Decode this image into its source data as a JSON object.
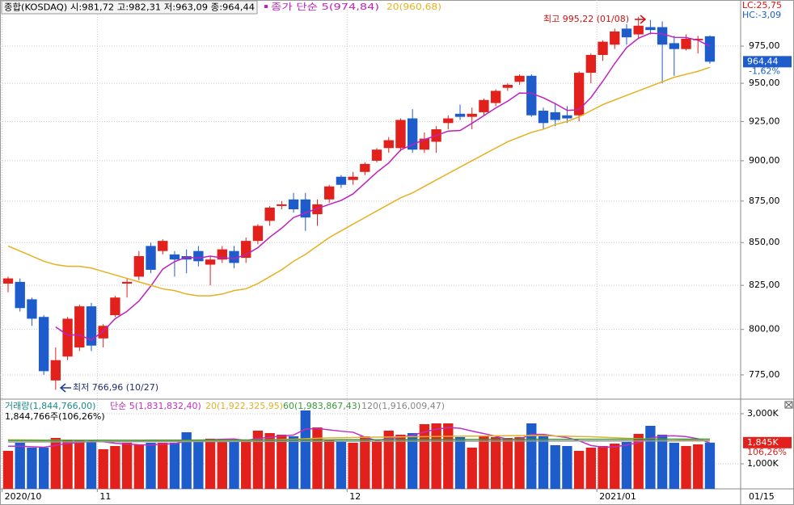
{
  "chart_data": [
    {
      "type": "candlestick",
      "title": "종합(KOSDAQ) 시:981,72 고:982,31 저:963,09 종:964,44",
      "log": true,
      "ylim": [
        762.4,
        1006.9
      ],
      "yticks": [
        {
          "value": 775,
          "label": "775,00"
        },
        {
          "value": 800,
          "label": "800,00"
        },
        {
          "value": 825,
          "label": "825,00"
        },
        {
          "value": 850,
          "label": "850,00"
        },
        {
          "value": 875,
          "label": "875,00"
        },
        {
          "value": 900,
          "label": "900,00"
        },
        {
          "value": 925,
          "label": "925,00"
        },
        {
          "value": 950,
          "label": "950,00"
        },
        {
          "value": 975,
          "label": "975,00"
        }
      ],
      "xticks": [
        {
          "value": -0.5,
          "label": "2020/10"
        },
        {
          "value": 7.5,
          "label": "11"
        },
        {
          "value": 28.5,
          "label": "12"
        },
        {
          "value": 49.5,
          "label": "2021/01"
        }
      ],
      "date_label": "01/15",
      "grid": true,
      "up_color": "#e2201c",
      "down_color": "#1e5ccc",
      "open": [
        826,
        827,
        817,
        807,
        772,
        785,
        790,
        813,
        795,
        808,
        826,
        830,
        848,
        845,
        843,
        842,
        845,
        837,
        840,
        845,
        841,
        851,
        863,
        872,
        876,
        876,
        867,
        876,
        890,
        888,
        893,
        900,
        908,
        908,
        927,
        907,
        912,
        924,
        930,
        928,
        931,
        937,
        947,
        951,
        955,
        932,
        931,
        929,
        929,
        957,
        969,
        976,
        987,
        983,
        988,
        988,
        977,
        973,
        979,
        981.72
      ],
      "high": [
        830,
        829,
        818,
        808,
        790,
        807,
        814,
        815,
        803,
        819,
        829,
        845,
        850,
        852,
        845,
        846,
        848,
        842,
        848,
        848,
        853,
        861,
        872,
        875,
        880,
        880,
        876,
        885,
        891,
        893,
        899,
        908,
        915,
        927,
        933,
        918,
        922,
        929,
        936,
        934,
        940,
        946,
        950,
        956,
        956,
        934,
        937,
        935,
        958,
        970,
        979,
        987,
        990,
        995.22,
        993,
        992,
        982,
        983,
        982,
        982.31
      ],
      "low": [
        821,
        810,
        802,
        775,
        766.96,
        783,
        788,
        788,
        790,
        807,
        818,
        828,
        832,
        843,
        830,
        832,
        836,
        825,
        838,
        835,
        838,
        849,
        860,
        870,
        868,
        857,
        860,
        874,
        883,
        885,
        891,
        899,
        905,
        906,
        905,
        905,
        905,
        920,
        926,
        920,
        929,
        935,
        945,
        949,
        928,
        920,
        922,
        924,
        925,
        950,
        965,
        973,
        976,
        980,
        983,
        950,
        955,
        972,
        970,
        963.09
      ],
      "close": [
        829,
        812,
        806,
        777,
        783,
        806,
        813,
        791,
        802,
        818,
        827,
        842,
        834,
        851,
        840,
        840,
        839,
        840,
        846,
        838,
        851,
        860,
        871,
        873,
        870,
        865,
        873,
        884,
        885,
        890,
        898,
        907,
        913,
        926,
        907,
        914,
        920,
        927,
        928,
        930,
        939,
        945,
        949,
        955,
        929,
        924,
        926,
        927,
        957,
        969,
        978,
        985,
        981,
        989,
        986,
        976,
        973,
        980,
        980,
        964.44
      ],
      "series": [
        {
          "name": "종가 단순 5(974,84)",
          "color": "#c020c0",
          "values": [
            null,
            null,
            null,
            null,
            801.4,
            796.8,
            797.0,
            794.0,
            799.0,
            806.0,
            810.2,
            816.0,
            824.6,
            834.4,
            838.8,
            841.4,
            840.8,
            842.0,
            841.0,
            840.6,
            842.8,
            847.0,
            853.2,
            858.6,
            865.0,
            867.8,
            870.4,
            873.0,
            875.4,
            879.4,
            886.0,
            892.8,
            898.6,
            906.8,
            910.2,
            913.4,
            916.0,
            918.8,
            919.2,
            923.8,
            928.8,
            933.8,
            938.2,
            943.6,
            943.4,
            940.4,
            936.6,
            932.2,
            932.6,
            940.6,
            951.4,
            963.2,
            974.0,
            980.4,
            983.8,
            983.4,
            981.0,
            980.8,
            979.0,
            974.84
          ]
        },
        {
          "name": "20(960,68)",
          "color": "#e6b020",
          "values": [
            848,
            845,
            842,
            839,
            837,
            836,
            836,
            835,
            833,
            831,
            829,
            827,
            825,
            823,
            822,
            820,
            819,
            819,
            820,
            822,
            823,
            826,
            830,
            834,
            839,
            843,
            848,
            853,
            857,
            861,
            865,
            869,
            873,
            877,
            880,
            884,
            888,
            892,
            896,
            900,
            904,
            908,
            912,
            915,
            918,
            920,
            923,
            925,
            928,
            932,
            936,
            939,
            942,
            945,
            948,
            951,
            954,
            956,
            958,
            960.68
          ]
        }
      ],
      "annotations": [
        "최고 995,22 (01/08)",
        "최저 766,96 (10/27)"
      ],
      "lc": "LC:25,75",
      "hc": "HC:-3,09",
      "last": {
        "value": 964.44,
        "label": "964,44"
      },
      "change": "-1,62%"
    },
    {
      "type": "bar",
      "title": "거래량(1,844,766,00)",
      "subtitle": "1,844,766주(106,26%)",
      "ylim": [
        0,
        3548
      ],
      "yticks": [
        {
          "value": 1000,
          "label": "1,000K"
        },
        {
          "value": 3000,
          "label": "3,000K"
        }
      ],
      "values": [
        1516,
        1839,
        1645,
        1645,
        2032,
        1968,
        1935,
        1903,
        1581,
        1710,
        1839,
        1774,
        1839,
        1839,
        1839,
        2258,
        1903,
        2000,
        1903,
        1903,
        1935,
        2323,
        2226,
        2161,
        2097,
        3129,
        2452,
        1935,
        1903,
        1839,
        2097,
        1871,
        2323,
        2161,
        2226,
        2581,
        2613,
        2613,
        2065,
        1645,
        2097,
        2065,
        2032,
        2065,
        2613,
        2097,
        1742,
        1710,
        1516,
        1645,
        1710,
        1806,
        1871,
        2194,
        2516,
        2161,
        1839,
        1710,
        1774,
        1844.766
      ],
      "series": [
        {
          "name": "단순 5(1,831,832,40)",
          "color": "#c030c0",
          "values": [
            1700,
            1700,
            1680,
            1660,
            1735,
            1820,
            1845,
            1900,
            1880,
            1820,
            1790,
            1760,
            1750,
            1790,
            1800,
            1910,
            1936,
            1957,
            1980,
            1993,
            1929,
            2013,
            2058,
            2110,
            2148,
            2387,
            2412,
            2354,
            2300,
            2260,
            2065,
            1929,
            2006,
            2058,
            2136,
            2272,
            2381,
            2443,
            2420,
            2305,
            2207,
            2097,
            1981,
            1981,
            2174,
            2174,
            2110,
            2046,
            1916,
            1730,
            1665,
            1675,
            1750,
            1845,
            2019,
            2110,
            2116,
            2084,
            2000,
            1831.8324
          ]
        },
        {
          "name": "20(1,922,325,95)",
          "color": "#e0b030",
          "values": [
            1960,
            1955,
            1950,
            1948,
            1945,
            1943,
            1940,
            1938,
            1935,
            1932,
            1930,
            1928,
            1925,
            1922,
            1920,
            1918,
            1920,
            1925,
            1930,
            1935,
            1940,
            1950,
            1960,
            1970,
            1980,
            2000,
            2020,
            2030,
            2040,
            2050,
            2060,
            2065,
            2070,
            2075,
            2080,
            2085,
            2090,
            2095,
            2100,
            2105,
            2110,
            2115,
            2120,
            2125,
            2130,
            2120,
            2110,
            2100,
            2090,
            2080,
            2060,
            2040,
            2020,
            2000,
            1990,
            1980,
            1970,
            1955,
            1940,
            1922.326
          ]
        },
        {
          "name": "60(1,983,867,43)",
          "color": "#3a9a3a",
          "values": [
            1930,
            1931,
            1932,
            1933,
            1934,
            1935,
            1936,
            1937,
            1938,
            1939,
            1940,
            1941,
            1942,
            1943,
            1944,
            1945,
            1946,
            1947,
            1948,
            1949,
            1950,
            1951,
            1952,
            1953,
            1954,
            1955,
            1956,
            1957,
            1958,
            1959,
            1960,
            1961,
            1962,
            1963,
            1964,
            1965,
            1966,
            1967,
            1968,
            1969,
            1970,
            1971,
            1972,
            1973,
            1974,
            1975,
            1976,
            1977,
            1978,
            1979,
            1980,
            1981,
            1981,
            1982,
            1982,
            1983,
            1983,
            1983,
            1984,
            1983.867
          ]
        },
        {
          "name": "120(1,916,009,47)",
          "color": "#999999",
          "values": [
            1870,
            1871,
            1872,
            1873,
            1874,
            1875,
            1876,
            1877,
            1878,
            1879,
            1880,
            1881,
            1882,
            1883,
            1884,
            1885,
            1886,
            1887,
            1888,
            1889,
            1890,
            1891,
            1892,
            1893,
            1894,
            1895,
            1896,
            1897,
            1898,
            1899,
            1900,
            1900,
            1901,
            1901,
            1902,
            1902,
            1903,
            1903,
            1904,
            1904,
            1905,
            1905,
            1906,
            1906,
            1907,
            1907,
            1908,
            1908,
            1909,
            1909,
            1910,
            1910,
            1911,
            1911,
            1912,
            1912,
            1913,
            1914,
            1915,
            1916.009
          ]
        }
      ],
      "last": {
        "value": 1844.766,
        "label": "1,845K"
      },
      "ratio": "106,26%"
    }
  ]
}
